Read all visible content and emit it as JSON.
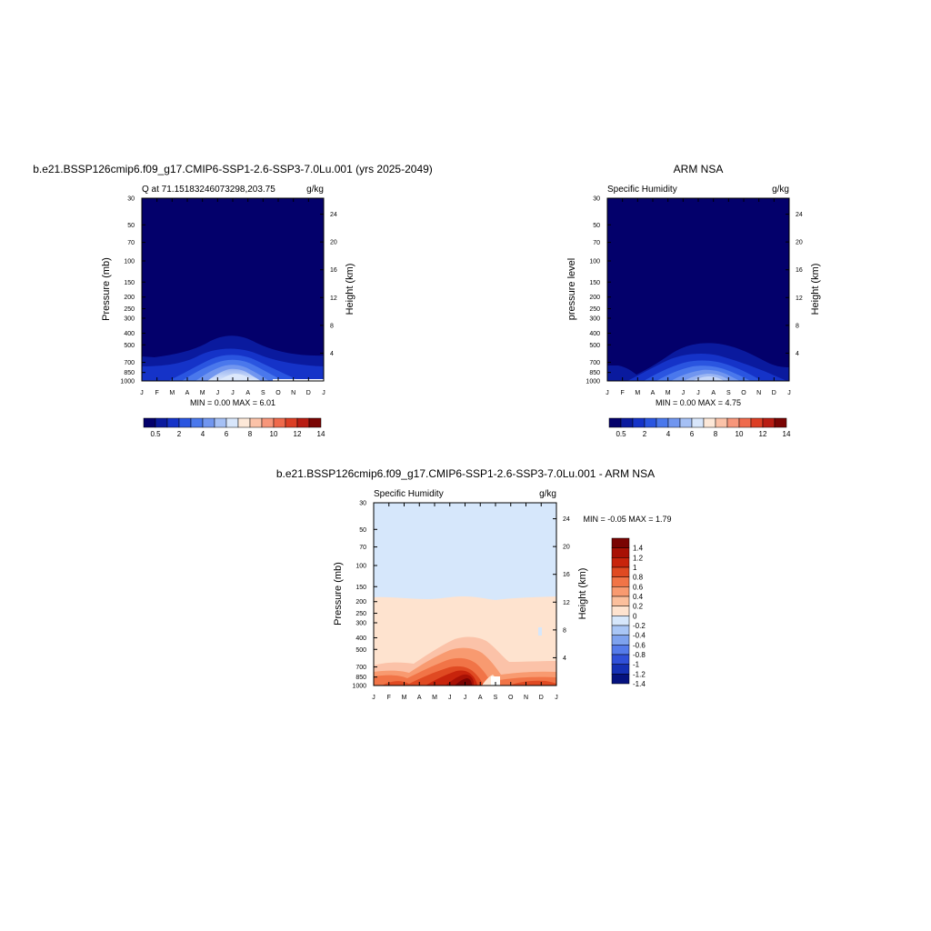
{
  "chart_data": [
    {
      "type": "heatmap",
      "title": "b.e21.BSSP126cmip6.f09_g17.CMIP6-SSP1-2.6-SSP3-7.0Lu.001 (yrs 2025-2049)",
      "left_label": "Q at 71.15183246073298,203.75",
      "right_label": "g/kg",
      "ylabel": "Pressure (mb)",
      "y2label": "Height (km)",
      "x_ticks": [
        "J",
        "F",
        "M",
        "A",
        "M",
        "J",
        "J",
        "A",
        "S",
        "O",
        "N",
        "D",
        "J"
      ],
      "y_ticks": [
        "30",
        "50",
        "70",
        "100",
        "150",
        "200",
        "250",
        "300",
        "400",
        "500",
        "700",
        "850",
        "1000"
      ],
      "y2_ticks": [
        "24",
        "20",
        "16",
        "12",
        "8",
        "4"
      ],
      "minmax": "MIN =   0.00 MAX =   6.01",
      "colorbar_ticks": [
        "0.5",
        "2",
        "4",
        "6",
        "8",
        "10",
        "12",
        "14"
      ]
    },
    {
      "type": "heatmap",
      "title": "ARM NSA",
      "left_label": "Specific Humidity",
      "right_label": "g/kg",
      "ylabel": "pressure level",
      "y2label": "Height (km)",
      "x_ticks": [
        "J",
        "F",
        "M",
        "A",
        "M",
        "J",
        "J",
        "A",
        "S",
        "O",
        "N",
        "D",
        "J"
      ],
      "y_ticks": [
        "30",
        "50",
        "70",
        "100",
        "150",
        "200",
        "250",
        "300",
        "400",
        "500",
        "700",
        "850",
        "1000"
      ],
      "y2_ticks": [
        "24",
        "20",
        "16",
        "12",
        "8",
        "4"
      ],
      "minmax": "MIN =   0.00 MAX =   4.75",
      "colorbar_ticks": [
        "0.5",
        "2",
        "4",
        "6",
        "8",
        "10",
        "12",
        "14"
      ]
    },
    {
      "type": "heatmap",
      "title": "b.e21.BSSP126cmip6.f09_g17.CMIP6-SSP1-2.6-SSP3-7.0Lu.001 - ARM NSA",
      "left_label": "Specific Humidity",
      "right_label": "g/kg",
      "ylabel": "Pressure (mb)",
      "y2label": "Height (km)",
      "x_ticks": [
        "J",
        "F",
        "M",
        "A",
        "M",
        "J",
        "J",
        "A",
        "S",
        "O",
        "N",
        "D",
        "J"
      ],
      "y_ticks": [
        "30",
        "50",
        "70",
        "100",
        "150",
        "200",
        "250",
        "300",
        "400",
        "500",
        "700",
        "850",
        "1000"
      ],
      "y2_ticks": [
        "24",
        "20",
        "16",
        "12",
        "8",
        "4"
      ],
      "minmax": "MIN =  -0.05 MAX =   1.79",
      "colorbar_ticks": [
        "1.4",
        "1.2",
        "1",
        "0.8",
        "0.6",
        "0.4",
        "0.2",
        "0",
        "-0.2",
        "-0.4",
        "-0.6",
        "-0.8",
        "-1",
        "-1.2",
        "-1.4"
      ]
    }
  ],
  "colors": {
    "abs_palette": [
      "#03006b",
      "#0a1a9e",
      "#1533c8",
      "#2a55e0",
      "#4a78ec",
      "#7196ef",
      "#a5c0f5",
      "#d8e6fb",
      "#fde8d8",
      "#fbc2a8",
      "#f7967a",
      "#ef6a4c",
      "#dc3e24",
      "#b81c12",
      "#7a0403"
    ],
    "diff_palette": [
      "#7a0403",
      "#a81105",
      "#c8240c",
      "#e04a22",
      "#f17447",
      "#f89a70",
      "#fbbf9c",
      "#fee3cf",
      "#d6e7fb",
      "#a9c6f5",
      "#7ea2ee",
      "#557bea",
      "#3050d8",
      "#1530b4",
      "#05127f"
    ]
  }
}
